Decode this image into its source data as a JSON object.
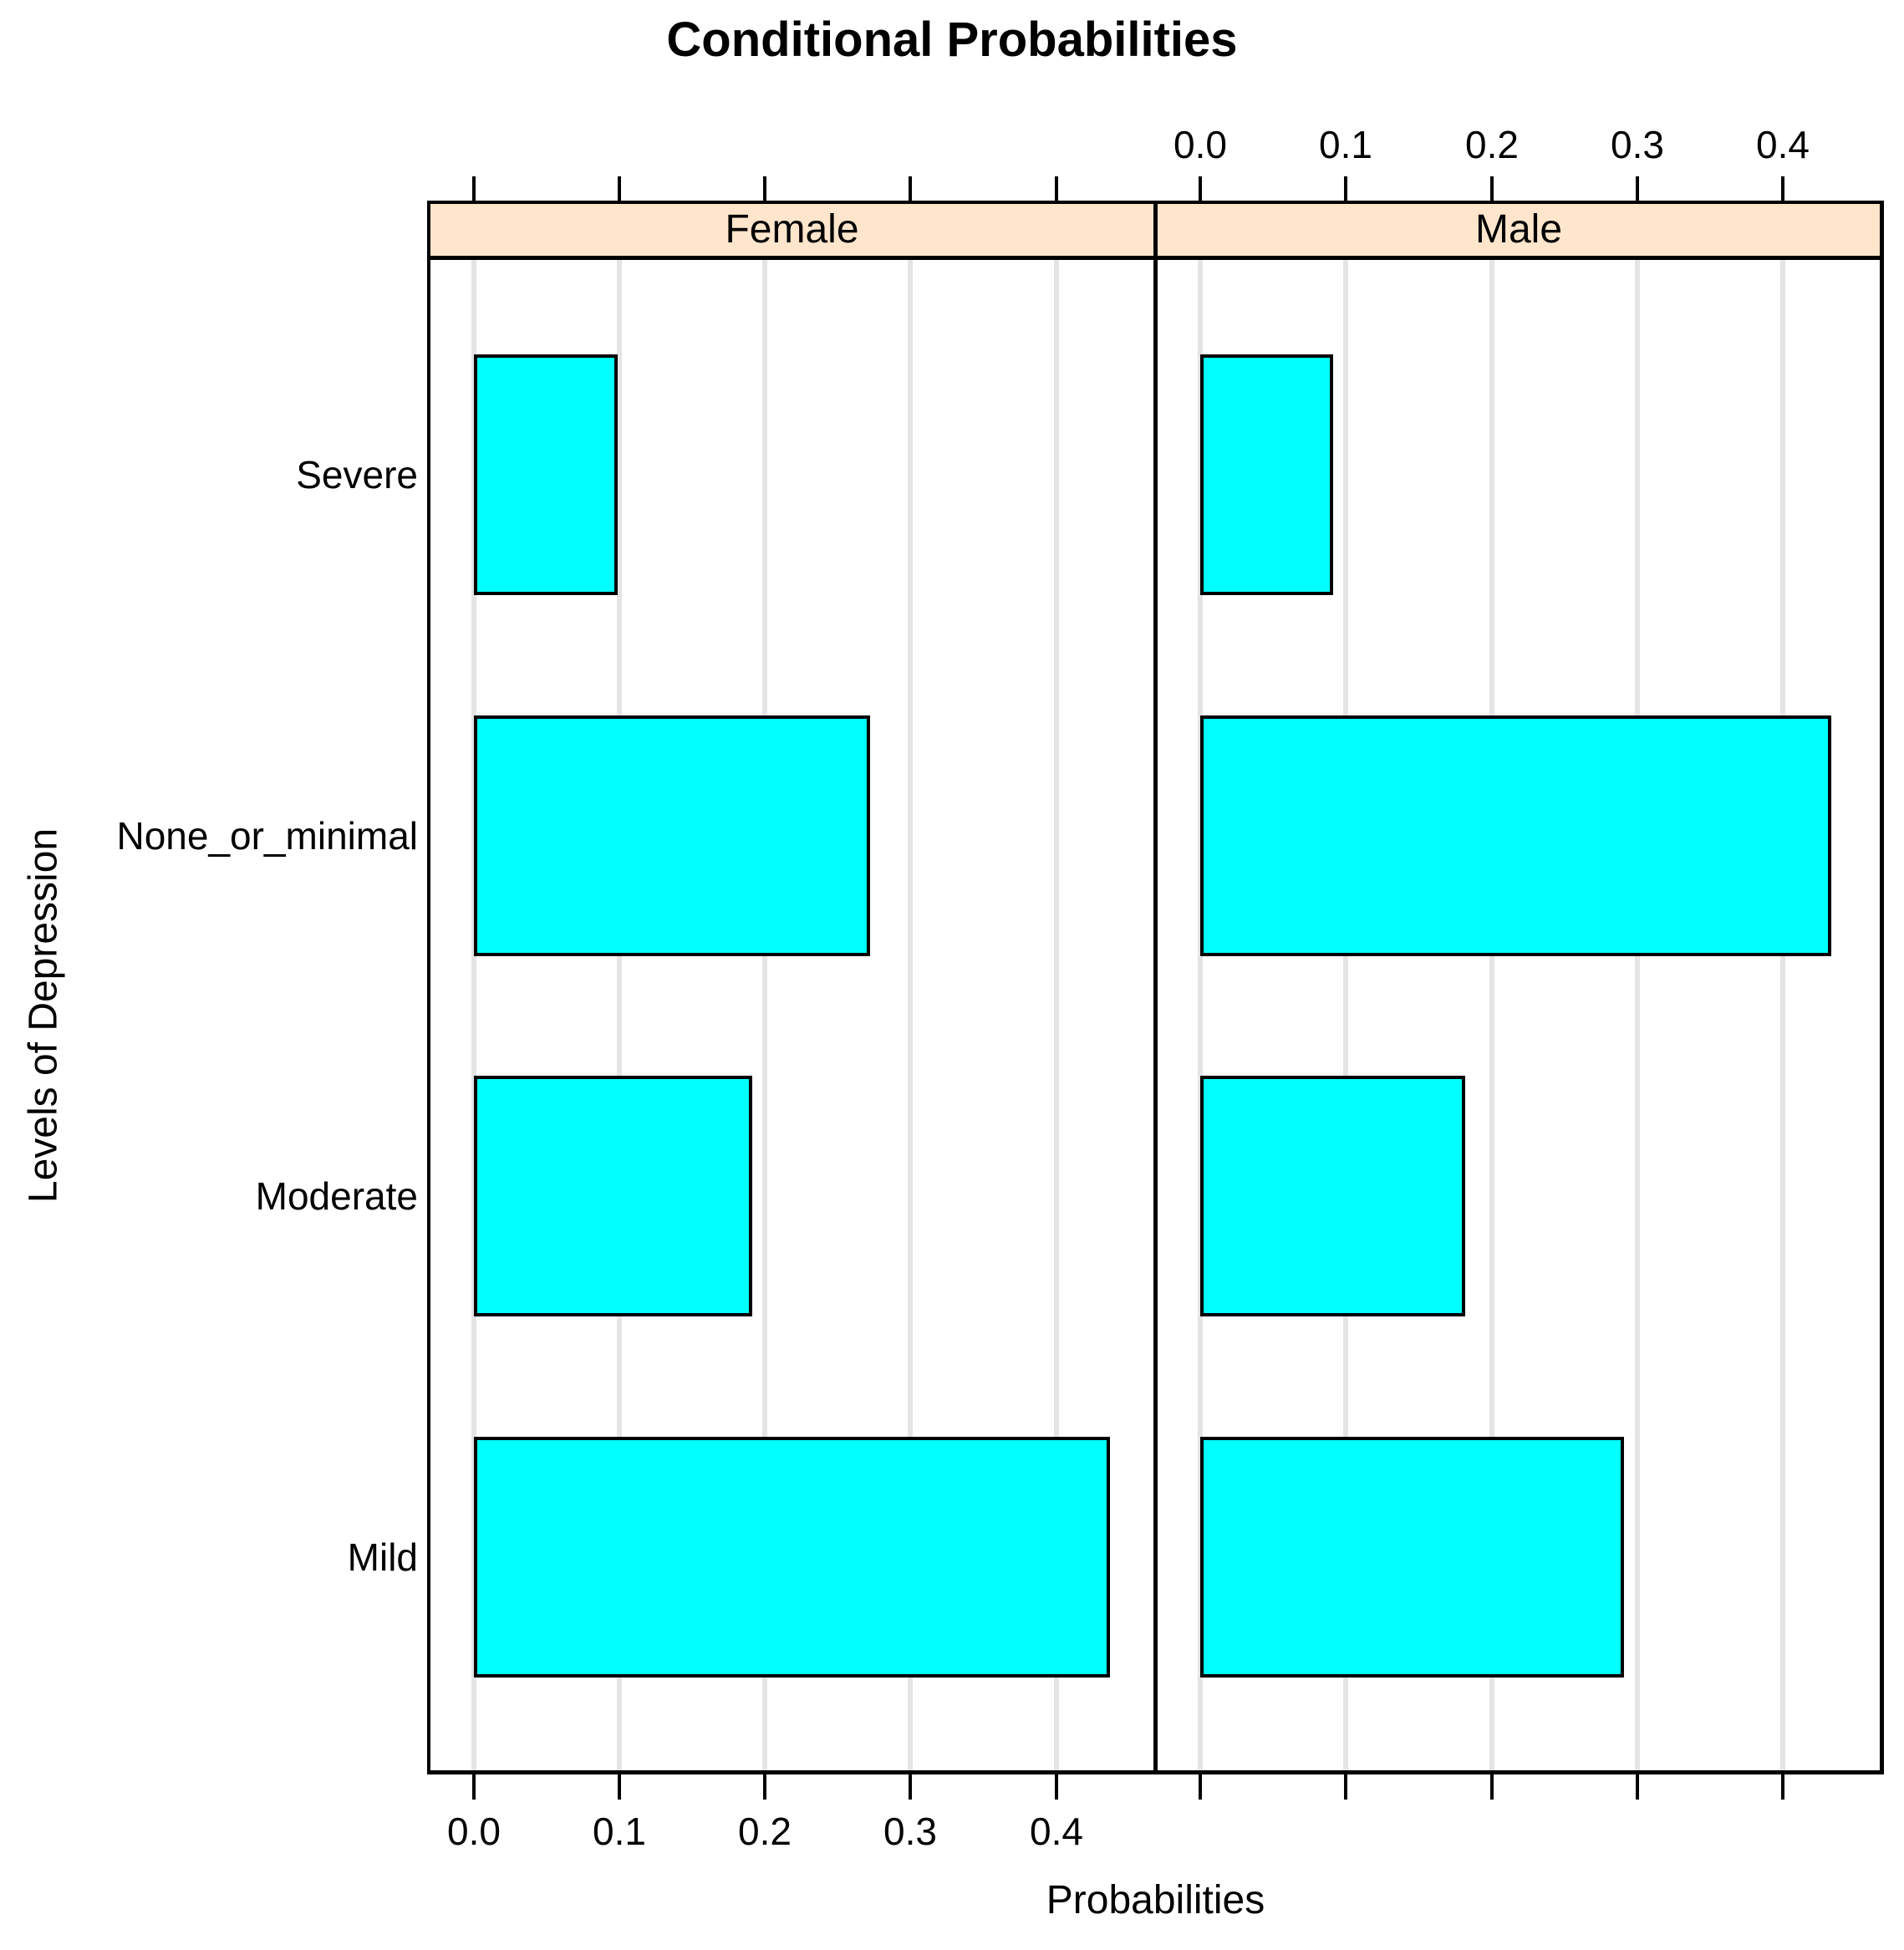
{
  "chart_data": {
    "type": "bar",
    "orientation": "horizontal",
    "title": "Conditional Probabilities",
    "xlabel": "Probabilities",
    "ylabel": "Levels of Depression",
    "panels": [
      "Female",
      "Male"
    ],
    "categories_top_to_bottom": [
      "Severe",
      "None_or_minimal",
      "Moderate",
      "Mild"
    ],
    "series": [
      {
        "name": "Female",
        "values": [
          0.099,
          0.272,
          0.191,
          0.437
        ]
      },
      {
        "name": "Male",
        "values": [
          0.091,
          0.433,
          0.182,
          0.291
        ]
      }
    ],
    "xticks": [
      0.0,
      0.1,
      0.2,
      0.3,
      0.4
    ],
    "top_axis_tick_labels": [
      "0.0",
      "0.1",
      "0.2",
      "0.3",
      "0.4"
    ],
    "bottom_axis_tick_labels": [
      "0.0",
      "0.1",
      "0.2",
      "0.3",
      "0.4"
    ],
    "top_axis_labels_panel": "Male",
    "bottom_axis_labels_panel": "Female",
    "xlim": [
      -0.031,
      0.468
    ],
    "grid": true,
    "legend": "none",
    "colors": {
      "bar_fill": "#00FFFF",
      "bar_border": "#000000",
      "strip_fill": "#FFE5CC",
      "panel_border": "#000000",
      "gridline": "#E4E4E4",
      "background": "#FFFFFF",
      "text": "#000000"
    }
  }
}
